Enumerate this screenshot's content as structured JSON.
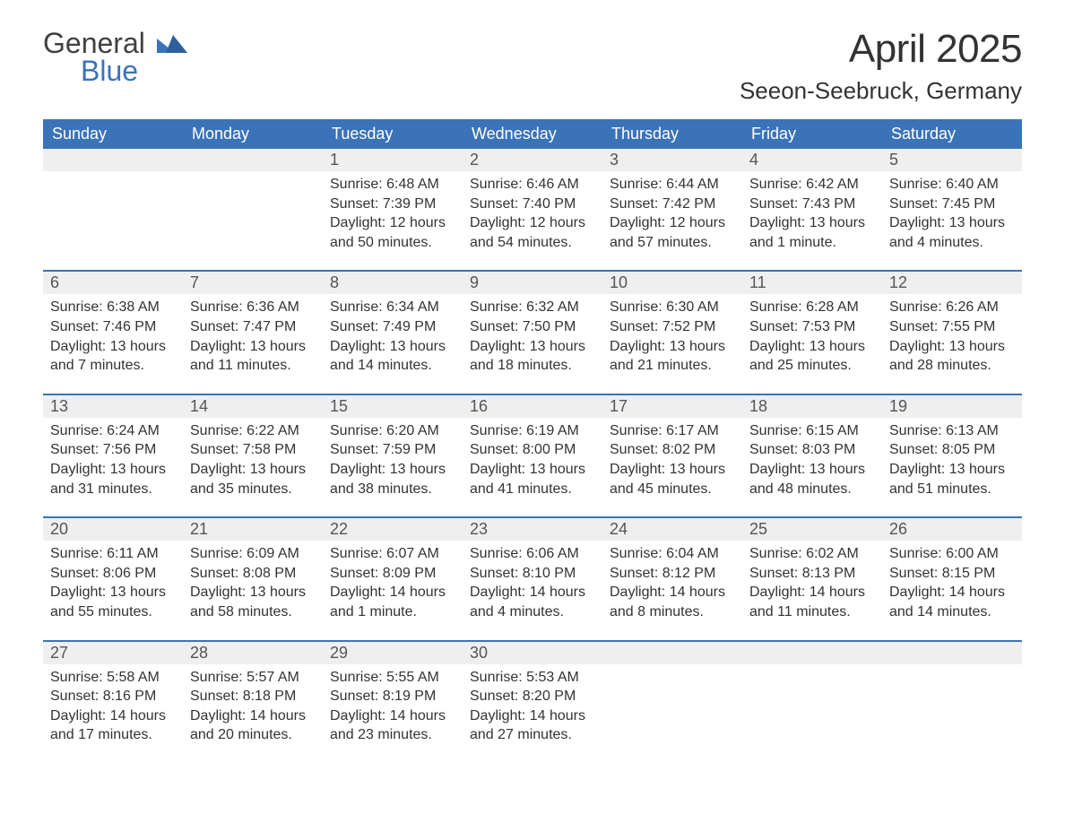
{
  "brand": {
    "text1": "General",
    "text2": "Blue",
    "accent_color": "#3b73b9",
    "shape_color": "#2f5f9e"
  },
  "title": "April 2025",
  "location": "Seeon-Seebruck, Germany",
  "calendar": {
    "type": "table",
    "header_bg": "#3b73b9",
    "header_fg": "#ffffff",
    "daynum_bg": "#efefef",
    "week_border": "#3b73b9",
    "columns": [
      "Sunday",
      "Monday",
      "Tuesday",
      "Wednesday",
      "Thursday",
      "Friday",
      "Saturday"
    ],
    "weeks": [
      [
        {
          "day": "",
          "sunrise": "",
          "sunset": "",
          "daylight": ""
        },
        {
          "day": "",
          "sunrise": "",
          "sunset": "",
          "daylight": ""
        },
        {
          "day": "1",
          "sunrise": "6:48 AM",
          "sunset": "7:39 PM",
          "daylight": "12 hours and 50 minutes."
        },
        {
          "day": "2",
          "sunrise": "6:46 AM",
          "sunset": "7:40 PM",
          "daylight": "12 hours and 54 minutes."
        },
        {
          "day": "3",
          "sunrise": "6:44 AM",
          "sunset": "7:42 PM",
          "daylight": "12 hours and 57 minutes."
        },
        {
          "day": "4",
          "sunrise": "6:42 AM",
          "sunset": "7:43 PM",
          "daylight": "13 hours and 1 minute."
        },
        {
          "day": "5",
          "sunrise": "6:40 AM",
          "sunset": "7:45 PM",
          "daylight": "13 hours and 4 minutes."
        }
      ],
      [
        {
          "day": "6",
          "sunrise": "6:38 AM",
          "sunset": "7:46 PM",
          "daylight": "13 hours and 7 minutes."
        },
        {
          "day": "7",
          "sunrise": "6:36 AM",
          "sunset": "7:47 PM",
          "daylight": "13 hours and 11 minutes."
        },
        {
          "day": "8",
          "sunrise": "6:34 AM",
          "sunset": "7:49 PM",
          "daylight": "13 hours and 14 minutes."
        },
        {
          "day": "9",
          "sunrise": "6:32 AM",
          "sunset": "7:50 PM",
          "daylight": "13 hours and 18 minutes."
        },
        {
          "day": "10",
          "sunrise": "6:30 AM",
          "sunset": "7:52 PM",
          "daylight": "13 hours and 21 minutes."
        },
        {
          "day": "11",
          "sunrise": "6:28 AM",
          "sunset": "7:53 PM",
          "daylight": "13 hours and 25 minutes."
        },
        {
          "day": "12",
          "sunrise": "6:26 AM",
          "sunset": "7:55 PM",
          "daylight": "13 hours and 28 minutes."
        }
      ],
      [
        {
          "day": "13",
          "sunrise": "6:24 AM",
          "sunset": "7:56 PM",
          "daylight": "13 hours and 31 minutes."
        },
        {
          "day": "14",
          "sunrise": "6:22 AM",
          "sunset": "7:58 PM",
          "daylight": "13 hours and 35 minutes."
        },
        {
          "day": "15",
          "sunrise": "6:20 AM",
          "sunset": "7:59 PM",
          "daylight": "13 hours and 38 minutes."
        },
        {
          "day": "16",
          "sunrise": "6:19 AM",
          "sunset": "8:00 PM",
          "daylight": "13 hours and 41 minutes."
        },
        {
          "day": "17",
          "sunrise": "6:17 AM",
          "sunset": "8:02 PM",
          "daylight": "13 hours and 45 minutes."
        },
        {
          "day": "18",
          "sunrise": "6:15 AM",
          "sunset": "8:03 PM",
          "daylight": "13 hours and 48 minutes."
        },
        {
          "day": "19",
          "sunrise": "6:13 AM",
          "sunset": "8:05 PM",
          "daylight": "13 hours and 51 minutes."
        }
      ],
      [
        {
          "day": "20",
          "sunrise": "6:11 AM",
          "sunset": "8:06 PM",
          "daylight": "13 hours and 55 minutes."
        },
        {
          "day": "21",
          "sunrise": "6:09 AM",
          "sunset": "8:08 PM",
          "daylight": "13 hours and 58 minutes."
        },
        {
          "day": "22",
          "sunrise": "6:07 AM",
          "sunset": "8:09 PM",
          "daylight": "14 hours and 1 minute."
        },
        {
          "day": "23",
          "sunrise": "6:06 AM",
          "sunset": "8:10 PM",
          "daylight": "14 hours and 4 minutes."
        },
        {
          "day": "24",
          "sunrise": "6:04 AM",
          "sunset": "8:12 PM",
          "daylight": "14 hours and 8 minutes."
        },
        {
          "day": "25",
          "sunrise": "6:02 AM",
          "sunset": "8:13 PM",
          "daylight": "14 hours and 11 minutes."
        },
        {
          "day": "26",
          "sunrise": "6:00 AM",
          "sunset": "8:15 PM",
          "daylight": "14 hours and 14 minutes."
        }
      ],
      [
        {
          "day": "27",
          "sunrise": "5:58 AM",
          "sunset": "8:16 PM",
          "daylight": "14 hours and 17 minutes."
        },
        {
          "day": "28",
          "sunrise": "5:57 AM",
          "sunset": "8:18 PM",
          "daylight": "14 hours and 20 minutes."
        },
        {
          "day": "29",
          "sunrise": "5:55 AM",
          "sunset": "8:19 PM",
          "daylight": "14 hours and 23 minutes."
        },
        {
          "day": "30",
          "sunrise": "5:53 AM",
          "sunset": "8:20 PM",
          "daylight": "14 hours and 27 minutes."
        },
        {
          "day": "",
          "sunrise": "",
          "sunset": "",
          "daylight": ""
        },
        {
          "day": "",
          "sunrise": "",
          "sunset": "",
          "daylight": ""
        },
        {
          "day": "",
          "sunrise": "",
          "sunset": "",
          "daylight": ""
        }
      ]
    ]
  },
  "labels": {
    "sunrise_prefix": "Sunrise: ",
    "sunset_prefix": "Sunset: ",
    "daylight_prefix": "Daylight: "
  }
}
